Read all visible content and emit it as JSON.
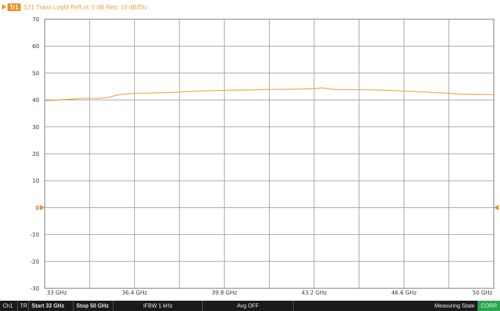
{
  "trace_header": {
    "marker": "Tr1",
    "text": "S21 Trans LogM RefLvl: 0 dB Res: 10 dB/Div"
  },
  "chart_data": {
    "type": "line",
    "xlabel": "",
    "ylabel": "",
    "xlim": [
      33,
      50
    ],
    "ylim": [
      -30,
      70
    ],
    "grid": true,
    "y_ticks": [
      70,
      60,
      50,
      40,
      30,
      20,
      10,
      0,
      -10,
      -20,
      -30
    ],
    "x_ticks": [
      {
        "value": 33,
        "label": "33 GHz"
      },
      {
        "value": 36.4,
        "label": "36.4 GHz"
      },
      {
        "value": 39.8,
        "label": "39.8 GHz"
      },
      {
        "value": 43.2,
        "label": "43.2 GHz"
      },
      {
        "value": 46.6,
        "label": "46.6 GHz"
      },
      {
        "value": 50,
        "label": "50 GHz"
      }
    ],
    "reference_level": 0,
    "series": [
      {
        "color": "#f0a040",
        "x": [
          33,
          33.5,
          34.0,
          34.5,
          35.0,
          35.4,
          35.7,
          36.0,
          36.4,
          37.2,
          38.0,
          38.5,
          39.0,
          39.8,
          40.5,
          41.5,
          42.5,
          43.2,
          43.5,
          44.0,
          45.0,
          46.0,
          46.6,
          47.5,
          48.0,
          48.7,
          49.3,
          50
        ],
        "values": [
          39.7,
          40.0,
          40.3,
          40.6,
          40.6,
          40.9,
          41.7,
          42.2,
          42.4,
          42.6,
          42.9,
          43.2,
          43.4,
          43.6,
          43.7,
          43.9,
          44.0,
          44.2,
          44.5,
          43.9,
          43.8,
          43.6,
          43.3,
          42.9,
          42.6,
          42.2,
          42.1,
          42.0
        ]
      }
    ]
  },
  "status_bar": {
    "channel": "Ch1",
    "trace": "TR",
    "start": "Start 33 GHz",
    "stop": "Stop 50 GHz",
    "ifbw": "IFBW 1 kHz",
    "avg": "Avg OFF",
    "state": "Measuring State",
    "corr": "CORR"
  },
  "colors": {
    "trace": "#f0a040",
    "marker_bg": "#f08c1e",
    "grid": "#a0a0a0",
    "corr_bg": "#2ea44f"
  }
}
